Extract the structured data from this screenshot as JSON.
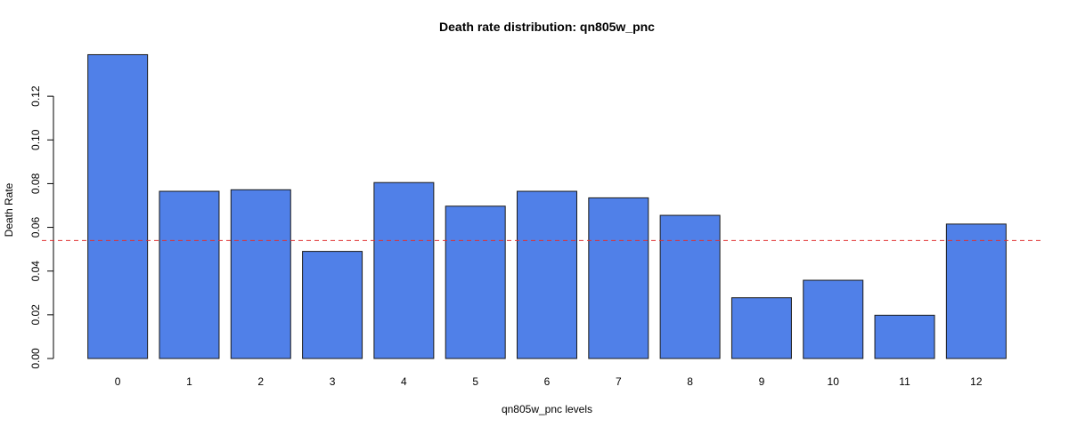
{
  "chart_data": {
    "type": "bar",
    "title": "Death rate distribution: qn805w_pnc",
    "xlabel": "qn805w_pnc levels",
    "ylabel": "Death Rate",
    "categories": [
      "0",
      "1",
      "2",
      "3",
      "4",
      "5",
      "6",
      "7",
      "8",
      "9",
      "10",
      "11",
      "12"
    ],
    "values": [
      0.139,
      0.0765,
      0.0772,
      0.049,
      0.0805,
      0.0697,
      0.0765,
      0.0735,
      0.0655,
      0.0278,
      0.0358,
      0.0198,
      0.0615
    ],
    "ylim": [
      0,
      0.14
    ],
    "yticks": [
      "0.00",
      "0.02",
      "0.04",
      "0.06",
      "0.08",
      "0.10",
      "0.12"
    ],
    "reference_line": {
      "value": 0.054,
      "style": "dashed",
      "color": "#e03030"
    },
    "bar_color": "#5080e8",
    "bar_border_color": "#1a1a1a",
    "grid": false,
    "legend": "none"
  }
}
